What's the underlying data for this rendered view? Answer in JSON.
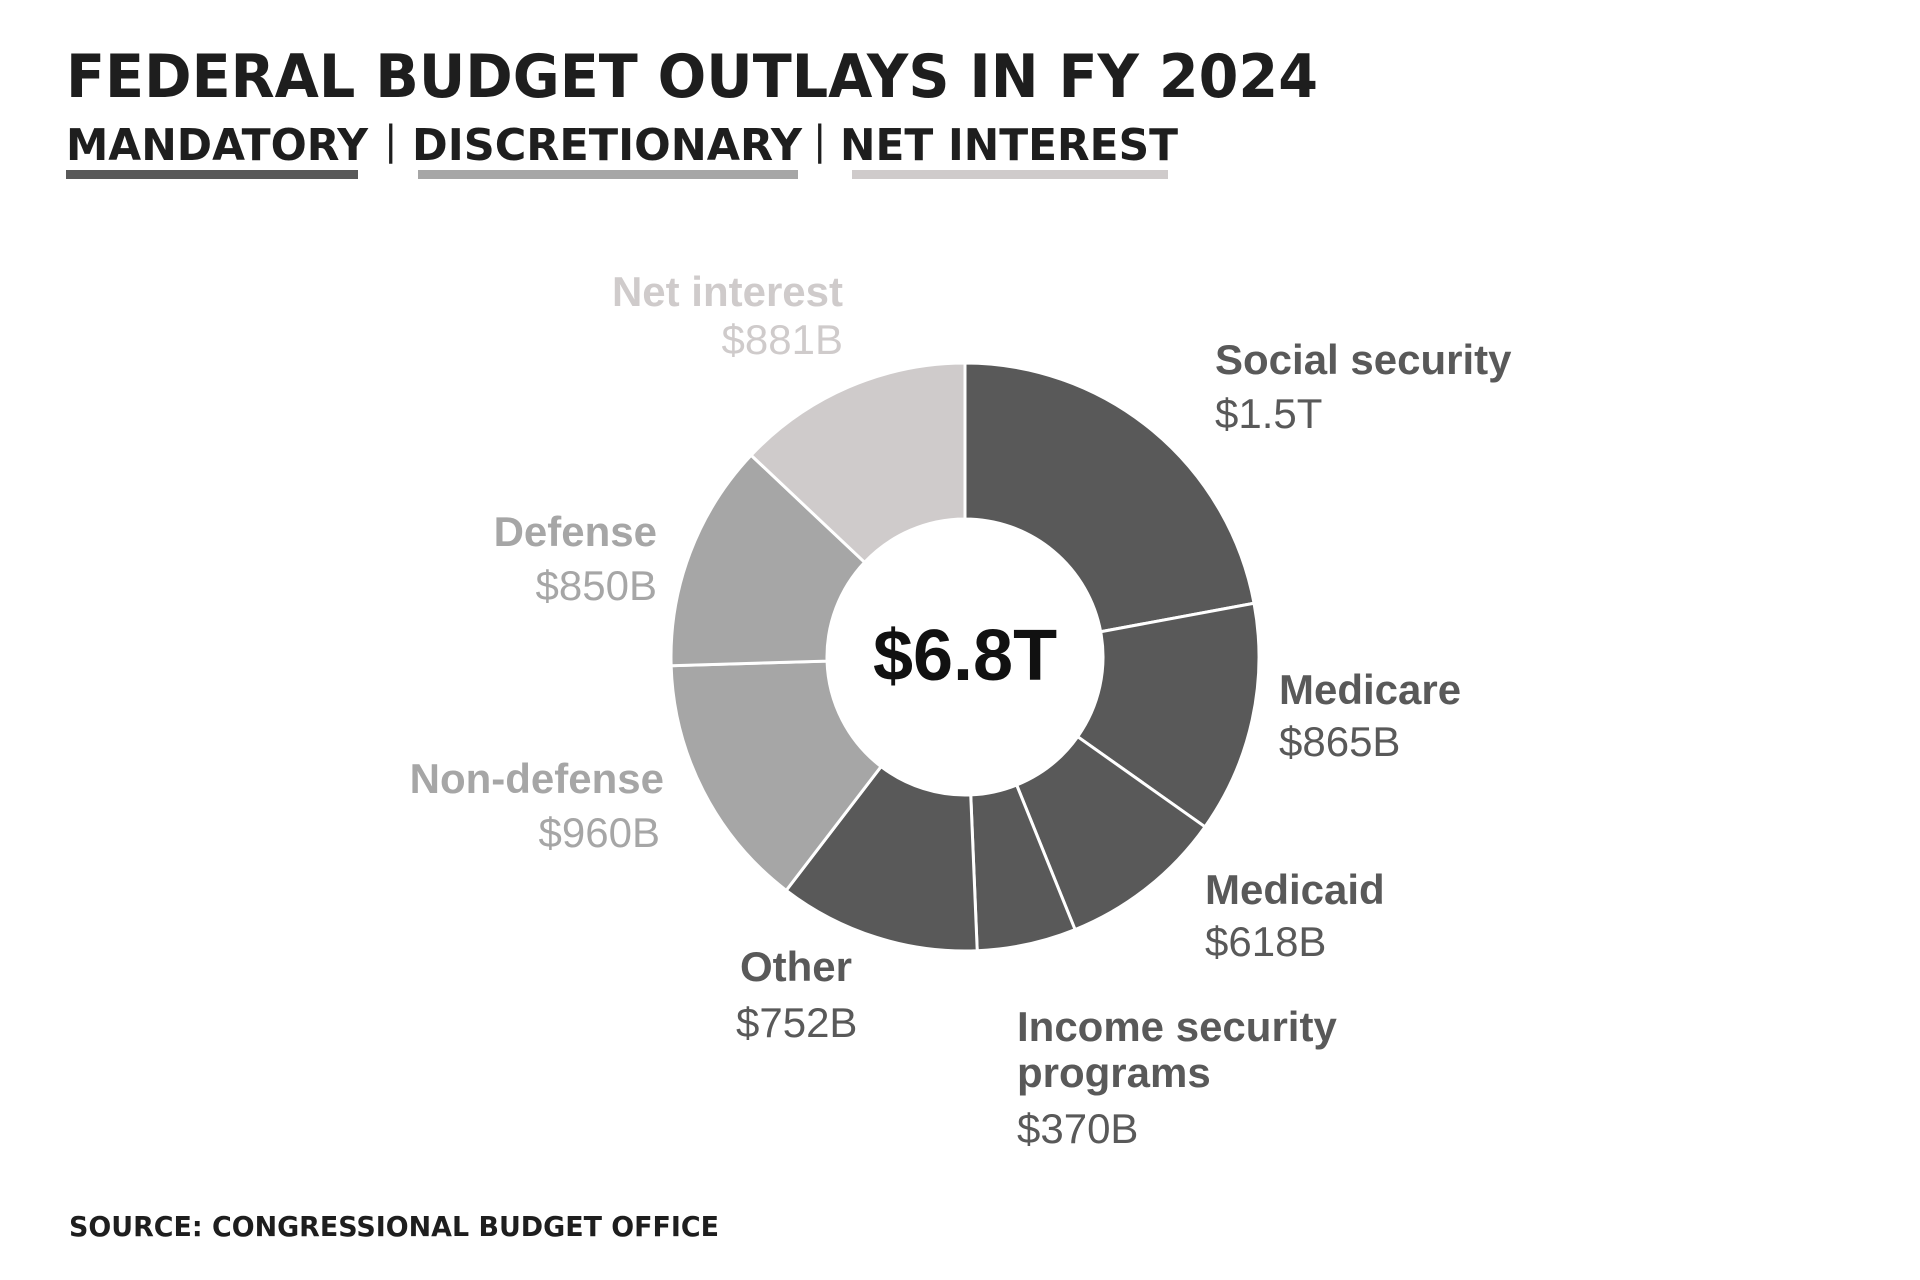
{
  "chart_data": {
    "type": "pie",
    "title": "FEDERAL BUDGET OUTLAYS IN FY 2024",
    "legend": [
      {
        "name": "MANDATORY",
        "color": "#595959"
      },
      {
        "name": "DISCRETIONARY",
        "color": "#a6a6a6"
      },
      {
        "name": "NET INTEREST",
        "color": "#cfcbcb"
      }
    ],
    "legend_separator": "|",
    "center_label": "$6.8T",
    "slices": [
      {
        "name": "Social security",
        "value": 1500,
        "value_label": "$1.5T",
        "group": "MANDATORY",
        "color": "#595959",
        "label_color": "#595959"
      },
      {
        "name": "Medicare",
        "value": 865,
        "value_label": "$865B",
        "group": "MANDATORY",
        "color": "#595959",
        "label_color": "#595959"
      },
      {
        "name": "Medicaid",
        "value": 618,
        "value_label": "$618B",
        "group": "MANDATORY",
        "color": "#595959",
        "label_color": "#595959"
      },
      {
        "name": "Income security programs",
        "name_lines": [
          "Income security",
          "programs"
        ],
        "value": 370,
        "value_label": "$370B",
        "group": "MANDATORY",
        "color": "#595959",
        "label_color": "#595959"
      },
      {
        "name": "Other",
        "value": 752,
        "value_label": "$752B",
        "group": "MANDATORY",
        "color": "#595959",
        "label_color": "#595959"
      },
      {
        "name": "Non-defense",
        "value": 960,
        "value_label": "$960B",
        "group": "DISCRETIONARY",
        "color": "#a6a6a6",
        "label_color": "#a6a6a6"
      },
      {
        "name": "Defense",
        "value": 850,
        "value_label": "$850B",
        "group": "DISCRETIONARY",
        "color": "#a6a6a6",
        "label_color": "#a6a6a6"
      },
      {
        "name": "Net interest",
        "value": 881,
        "value_label": "$881B",
        "group": "NET INTEREST",
        "color": "#cfcbcb",
        "label_color": "#cfcbcb"
      }
    ],
    "source": "SOURCE: CONGRESSIONAL BUDGET OFFICE"
  }
}
